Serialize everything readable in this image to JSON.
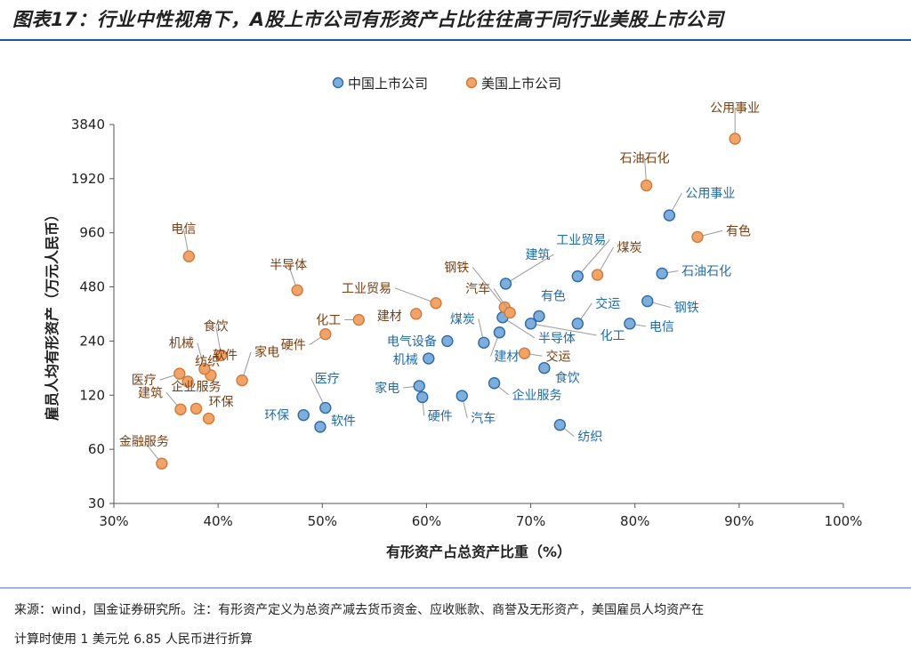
{
  "title": "图表17：行业中性视角下，A股上市公司有形资产占比往往高于同行业美股上市公司",
  "source": {
    "line1": "来源：wind，国金证券研究所。注：有形资产定义为总资产减去货币资金、应收账款、商誉及无形资产，美国雇员人均资产在",
    "line2": "计算时使用 1 美元兑 6.85 人民币进行折算"
  },
  "chart_data": {
    "type": "scatter",
    "xlabel": "有形资产占总资产比重（%）",
    "ylabel": "雇员人均有形资产（万元人民币）",
    "xlim": [
      0.3,
      1.0
    ],
    "x_ticks": [
      "30%",
      "40%",
      "50%",
      "60%",
      "70%",
      "80%",
      "90%",
      "100%"
    ],
    "yscale": "log2",
    "ylim": [
      30,
      3840
    ],
    "y_ticks": [
      "30",
      "60",
      "120",
      "240",
      "480",
      "960",
      "1920",
      "3840"
    ],
    "grid": false,
    "legend": "top-center",
    "colors": {
      "cn_fill": "#7eaedc",
      "cn_stroke": "#2c6aa8",
      "us_fill": "#f0a46a",
      "us_stroke": "#d07a3a",
      "cn_label": "#1f6aa8",
      "us_label": "#7a3d10"
    },
    "series": [
      {
        "name": "中国上市公司",
        "points": [
          {
            "label": "公用事业",
            "x": 0.833,
            "y": 1200
          },
          {
            "label": "石油石化",
            "x": 0.826,
            "y": 570
          },
          {
            "label": "工业贸易",
            "x": 0.745,
            "y": 550
          },
          {
            "label": "建筑",
            "x": 0.676,
            "y": 500
          },
          {
            "label": "钢铁",
            "x": 0.812,
            "y": 400
          },
          {
            "label": "有色",
            "x": 0.708,
            "y": 330
          },
          {
            "label": "交运",
            "x": 0.745,
            "y": 300
          },
          {
            "label": "电信",
            "x": 0.795,
            "y": 300
          },
          {
            "label": "化工",
            "x": 0.7,
            "y": 300
          },
          {
            "label": "半导体",
            "x": 0.673,
            "y": 325
          },
          {
            "label": "建材",
            "x": 0.67,
            "y": 268
          },
          {
            "label": "煤炭",
            "x": 0.655,
            "y": 235
          },
          {
            "label": "电气设备",
            "x": 0.62,
            "y": 240
          },
          {
            "label": "机械",
            "x": 0.602,
            "y": 192
          },
          {
            "label": "食饮",
            "x": 0.713,
            "y": 170
          },
          {
            "label": "企业服务",
            "x": 0.665,
            "y": 140
          },
          {
            "label": "家电",
            "x": 0.593,
            "y": 135
          },
          {
            "label": "硬件",
            "x": 0.596,
            "y": 117
          },
          {
            "label": "汽车",
            "x": 0.634,
            "y": 119
          },
          {
            "label": "医疗",
            "x": 0.503,
            "y": 102
          },
          {
            "label": "环保",
            "x": 0.482,
            "y": 93
          },
          {
            "label": "软件",
            "x": 0.498,
            "y": 80
          },
          {
            "label": "纺织",
            "x": 0.728,
            "y": 82
          }
        ]
      },
      {
        "name": "美国上市公司",
        "points": [
          {
            "label": "公用事业",
            "x": 0.896,
            "y": 3200
          },
          {
            "label": "石油石化",
            "x": 0.811,
            "y": 1760
          },
          {
            "label": "有色",
            "x": 0.86,
            "y": 910
          },
          {
            "label": "煤炭",
            "x": 0.764,
            "y": 560
          },
          {
            "label": "电信",
            "x": 0.372,
            "y": 710
          },
          {
            "label": "半导体",
            "x": 0.476,
            "y": 460
          },
          {
            "label": "工业贸易",
            "x": 0.609,
            "y": 390
          },
          {
            "label": "建材",
            "x": 0.59,
            "y": 340
          },
          {
            "label": "化工",
            "x": 0.535,
            "y": 315
          },
          {
            "label": "钢铁",
            "x": 0.675,
            "y": 370
          },
          {
            "label": "汽车",
            "x": 0.68,
            "y": 345
          },
          {
            "label": "硬件",
            "x": 0.503,
            "y": 262
          },
          {
            "label": "交运",
            "x": 0.694,
            "y": 205
          },
          {
            "label": "食饮",
            "x": 0.403,
            "y": 200
          },
          {
            "label": "软件",
            "x": 0.393,
            "y": 155
          },
          {
            "label": "机械",
            "x": 0.387,
            "y": 168
          },
          {
            "label": "家电",
            "x": 0.423,
            "y": 145
          },
          {
            "label": "医疗",
            "x": 0.363,
            "y": 158
          },
          {
            "label": "纺织",
            "x": 0.371,
            "y": 143
          },
          {
            "label": "建筑",
            "x": 0.364,
            "y": 100
          },
          {
            "label": "企业服务",
            "x": 0.379,
            "y": 101
          },
          {
            "label": "环保",
            "x": 0.391,
            "y": 89
          },
          {
            "label": "金融服务",
            "x": 0.346,
            "y": 50
          }
        ]
      }
    ]
  }
}
